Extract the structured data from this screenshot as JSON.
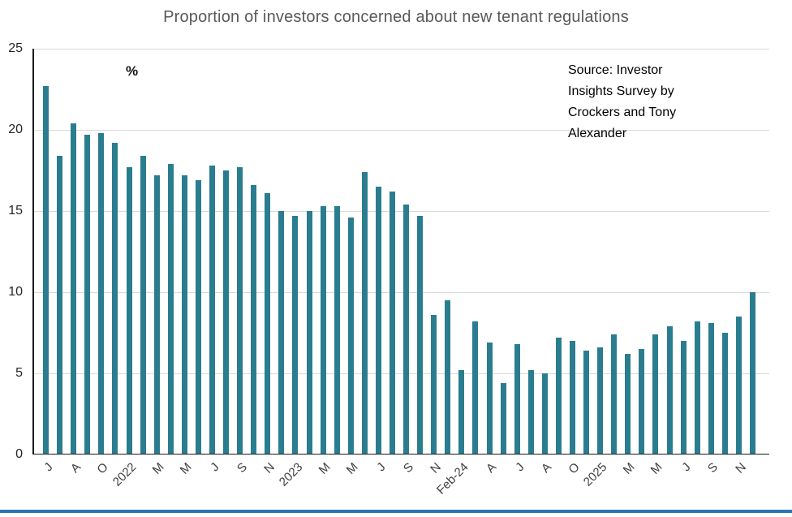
{
  "title": "Proportion of investors concerned about new tenant regulations",
  "percent_label": "%",
  "source": {
    "lines": [
      "Source: Investor",
      "Insights Survey by",
      "Crockers and Tony",
      "Alexander"
    ]
  },
  "theme": {
    "bar_color": "#2a7d8f",
    "bottom_rule_color": "#2e74b5",
    "title_color": "#595959",
    "gridline_color": "#d9d9d9"
  },
  "chart_data": {
    "type": "bar",
    "title": "Proportion of investors concerned about new tenant regulations",
    "xlabel": "",
    "ylabel": "%",
    "ylim": [
      0,
      25
    ],
    "yticks": [
      0,
      5,
      10,
      15,
      20,
      25
    ],
    "grid": true,
    "legend": "none",
    "bar_color": "#2a7d8f",
    "points": [
      {
        "label": "J",
        "value": 22.7
      },
      {
        "label": "",
        "value": 18.4
      },
      {
        "label": "A",
        "value": 20.4
      },
      {
        "label": "",
        "value": 19.7
      },
      {
        "label": "O",
        "value": 19.8
      },
      {
        "label": "",
        "value": 19.2
      },
      {
        "label": "2022",
        "value": 17.7
      },
      {
        "label": "",
        "value": 18.4
      },
      {
        "label": "M",
        "value": 17.2
      },
      {
        "label": "",
        "value": 17.9
      },
      {
        "label": "M",
        "value": 17.2
      },
      {
        "label": "",
        "value": 16.9
      },
      {
        "label": "J",
        "value": 17.8
      },
      {
        "label": "",
        "value": 17.5
      },
      {
        "label": "S",
        "value": 17.7
      },
      {
        "label": "",
        "value": 16.6
      },
      {
        "label": "N",
        "value": 16.1
      },
      {
        "label": "",
        "value": 15.0
      },
      {
        "label": "2023",
        "value": 14.7
      },
      {
        "label": "",
        "value": 15.0
      },
      {
        "label": "M",
        "value": 15.3
      },
      {
        "label": "",
        "value": 15.3
      },
      {
        "label": "M",
        "value": 14.6
      },
      {
        "label": "",
        "value": 17.4
      },
      {
        "label": "J",
        "value": 16.5
      },
      {
        "label": "",
        "value": 16.2
      },
      {
        "label": "S",
        "value": 15.4
      },
      {
        "label": "",
        "value": 14.7
      },
      {
        "label": "N",
        "value": 8.6
      },
      {
        "label": "",
        "value": 9.5
      },
      {
        "label": "Feb-24",
        "value": 5.2
      },
      {
        "label": "",
        "value": 8.2
      },
      {
        "label": "A",
        "value": 6.9
      },
      {
        "label": "",
        "value": 4.4
      },
      {
        "label": "J",
        "value": 6.8
      },
      {
        "label": "",
        "value": 5.2
      },
      {
        "label": "A",
        "value": 5.0
      },
      {
        "label": "",
        "value": 7.2
      },
      {
        "label": "O",
        "value": 7.0
      },
      {
        "label": "",
        "value": 6.4
      },
      {
        "label": "2025",
        "value": 6.6
      },
      {
        "label": "",
        "value": 7.4
      },
      {
        "label": "M",
        "value": 6.2
      },
      {
        "label": "",
        "value": 6.5
      },
      {
        "label": "M",
        "value": 7.4
      },
      {
        "label": "",
        "value": 7.9
      },
      {
        "label": "J",
        "value": 7.0
      },
      {
        "label": "",
        "value": 8.2
      },
      {
        "label": "S",
        "value": 8.1
      },
      {
        "label": "",
        "value": 7.5
      },
      {
        "label": "N",
        "value": 8.5
      },
      {
        "label": "",
        "value": 10.0
      }
    ]
  }
}
